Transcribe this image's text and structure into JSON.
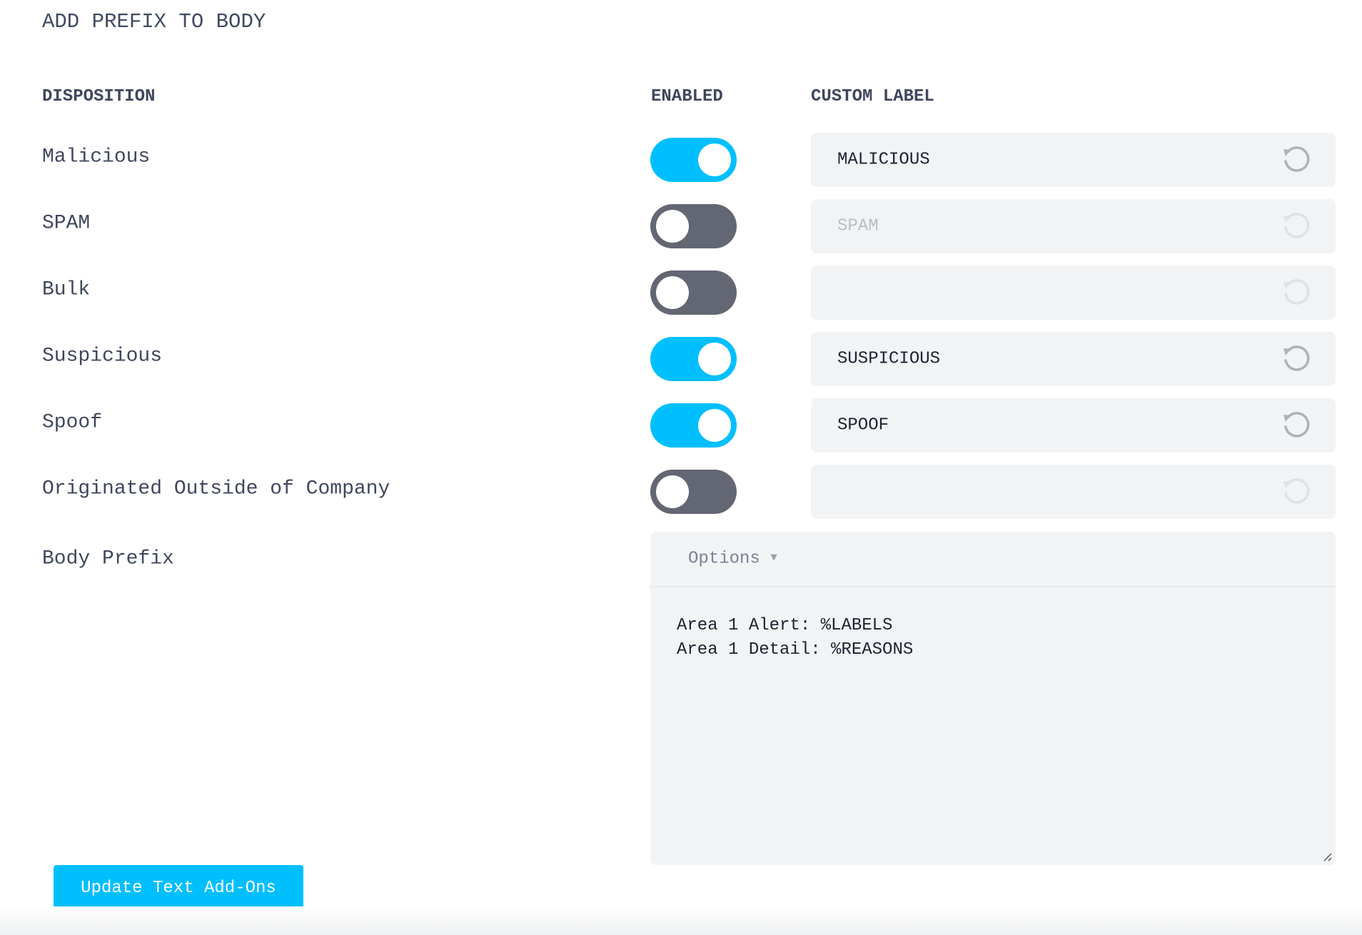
{
  "section_title": "ADD PREFIX TO BODY",
  "headers": {
    "disposition": "DISPOSITION",
    "enabled": "ENABLED",
    "custom_label": "CUSTOM LABEL"
  },
  "rows": [
    {
      "label": "Malicious",
      "enabled": true,
      "custom_label": "MALICIOUS"
    },
    {
      "label": "SPAM",
      "enabled": false,
      "custom_label": "SPAM"
    },
    {
      "label": "Bulk",
      "enabled": false,
      "custom_label": ""
    },
    {
      "label": "Suspicious",
      "enabled": true,
      "custom_label": "SUSPICIOUS"
    },
    {
      "label": "Spoof",
      "enabled": true,
      "custom_label": "SPOOF"
    },
    {
      "label": "Originated Outside of Company",
      "enabled": false,
      "custom_label": ""
    }
  ],
  "body_prefix": {
    "label": "Body Prefix",
    "options_label": "Options",
    "lines": [
      "Area 1 Alert: %LABELS",
      "Area 1 Detail: %REASONS"
    ]
  },
  "update_button": "Update Text Add-Ons",
  "icons": {
    "reset": "reset-icon",
    "dropdown": "caret-down-icon"
  },
  "colors": {
    "toggle_on": "#00bfff",
    "toggle_off": "#636673",
    "button": "#00bfff",
    "field_bg": "#f1f3f5"
  }
}
